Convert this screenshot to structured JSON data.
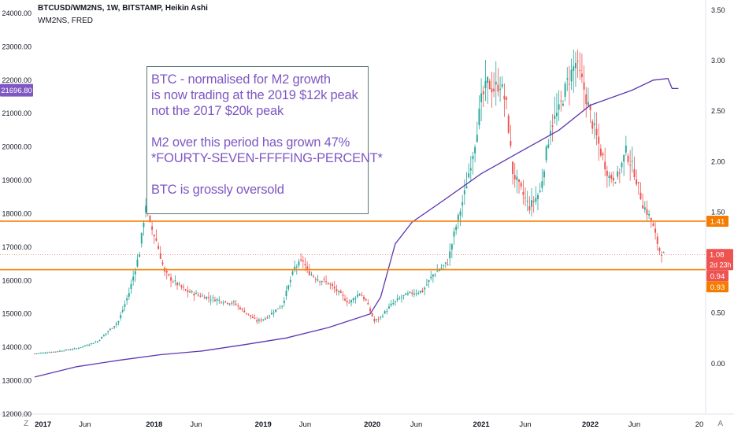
{
  "header": {
    "symbol_line": "BTCUSD/WM2NS, 1W, BITSTAMP, Heikin Ashi",
    "indicator_line": "WM2NS, FRED"
  },
  "annotation": {
    "lines": [
      "BTC - normalised for M2 growth",
      "is now trading at the 2019 $12k peak",
      "not the 2017 $20k peak",
      "",
      "M2 over this period has grown 47%",
      "*FOURTY-SEVEN-FFFFING-PERCENT*",
      "",
      "BTC is grossly oversold"
    ]
  },
  "footer": {
    "timezone_icon": "Z",
    "auto_label": "A"
  },
  "colors": {
    "up": "#26a69a",
    "down": "#ef5350",
    "m2_line": "#5e35b1",
    "hline": "#f57c00",
    "m2_badge": "#7e57c2",
    "price_badge": "#ef5350",
    "hline_badge": "#f57c00"
  },
  "chart_data": {
    "type": "candlestick+line",
    "x_axis": {
      "ticks": [
        "2017",
        "Jun",
        "2018",
        "Jun",
        "2019",
        "Jun",
        "2020",
        "Jun",
        "2021",
        "Jun",
        "2022",
        "Jun",
        "20"
      ],
      "tick_weeks": [
        4,
        24,
        57,
        77,
        109,
        129,
        161,
        182,
        213,
        234,
        265,
        286,
        317
      ],
      "range_weeks": [
        0,
        320
      ]
    },
    "left_axis": {
      "label": "WM2NS",
      "range": [
        12000,
        24400
      ],
      "ticks": [
        "24000.00",
        "23000.00",
        "22000.00",
        "21000.00",
        "20000.00",
        "19000.00",
        "18000.00",
        "17000.00",
        "16000.00",
        "15000.00",
        "14000.00",
        "13000.00",
        "12000.00"
      ],
      "tick_values": [
        24000,
        23000,
        22000,
        21000,
        20000,
        19000,
        18000,
        17000,
        16000,
        15000,
        14000,
        13000,
        12000
      ],
      "current_value_badge": "21696.80",
      "current_value": 21696.8
    },
    "right_axis": {
      "label": "BTCUSD/WM2NS",
      "range": [
        -0.5,
        3.6
      ],
      "ticks": [
        "3.50",
        "3.00",
        "2.50",
        "2.00",
        "1.50",
        "1.00",
        "0.50",
        "0.00"
      ],
      "tick_values": [
        3.5,
        3.0,
        2.5,
        2.0,
        1.5,
        1.0,
        0.5,
        0.0
      ],
      "price_badge": "1.08",
      "price_value": 1.08,
      "countdown_badge": "2d 23h",
      "low_badge": "0.94",
      "low_value": 0.94
    },
    "horizontal_lines": [
      {
        "value": 1.41,
        "label": "1.41"
      },
      {
        "value": 0.93,
        "label": "0.93"
      }
    ],
    "m2_series_keypoints": [
      [
        0,
        13110
      ],
      [
        20,
        13420
      ],
      [
        40,
        13610
      ],
      [
        60,
        13780
      ],
      [
        80,
        13890
      ],
      [
        100,
        14080
      ],
      [
        120,
        14280
      ],
      [
        140,
        14590
      ],
      [
        160,
        15000
      ],
      [
        165,
        15500
      ],
      [
        172,
        17100
      ],
      [
        180,
        17750
      ],
      [
        195,
        18400
      ],
      [
        213,
        19200
      ],
      [
        230,
        19800
      ],
      [
        250,
        20500
      ],
      [
        265,
        21250
      ],
      [
        285,
        21700
      ],
      [
        295,
        22000
      ],
      [
        302,
        22050
      ],
      [
        304,
        21750
      ],
      [
        307,
        21750
      ]
    ],
    "ratio_keypoints": [
      [
        0,
        0.1
      ],
      [
        10,
        0.12
      ],
      [
        20,
        0.15
      ],
      [
        30,
        0.22
      ],
      [
        40,
        0.42
      ],
      [
        45,
        0.7
      ],
      [
        50,
        1.1
      ],
      [
        53,
        1.58
      ],
      [
        55,
        1.38
      ],
      [
        58,
        1.22
      ],
      [
        62,
        0.9
      ],
      [
        66,
        0.82
      ],
      [
        72,
        0.72
      ],
      [
        78,
        0.68
      ],
      [
        85,
        0.64
      ],
      [
        95,
        0.6
      ],
      [
        100,
        0.52
      ],
      [
        106,
        0.42
      ],
      [
        110,
        0.45
      ],
      [
        118,
        0.58
      ],
      [
        124,
        0.95
      ],
      [
        128,
        1.02
      ],
      [
        130,
        0.92
      ],
      [
        134,
        0.85
      ],
      [
        140,
        0.8
      ],
      [
        146,
        0.68
      ],
      [
        150,
        0.6
      ],
      [
        155,
        0.7
      ],
      [
        158,
        0.62
      ],
      [
        162,
        0.42
      ],
      [
        165,
        0.46
      ],
      [
        170,
        0.58
      ],
      [
        175,
        0.66
      ],
      [
        180,
        0.7
      ],
      [
        185,
        0.72
      ],
      [
        190,
        0.88
      ],
      [
        197,
        1.0
      ],
      [
        200,
        1.28
      ],
      [
        205,
        1.68
      ],
      [
        210,
        2.2
      ],
      [
        213,
        2.6
      ],
      [
        216,
        2.78
      ],
      [
        219,
        2.72
      ],
      [
        222,
        2.78
      ],
      [
        225,
        2.55
      ],
      [
        228,
        1.9
      ],
      [
        231,
        1.75
      ],
      [
        236,
        1.55
      ],
      [
        241,
        1.7
      ],
      [
        246,
        2.35
      ],
      [
        250,
        2.5
      ],
      [
        254,
        2.78
      ],
      [
        258,
        2.98
      ],
      [
        262,
        2.72
      ],
      [
        266,
        2.38
      ],
      [
        270,
        2.1
      ],
      [
        274,
        1.85
      ],
      [
        278,
        1.85
      ],
      [
        282,
        2.1
      ],
      [
        286,
        1.9
      ],
      [
        290,
        1.58
      ],
      [
        294,
        1.42
      ],
      [
        298,
        1.12
      ],
      [
        300,
        1.08
      ]
    ]
  }
}
